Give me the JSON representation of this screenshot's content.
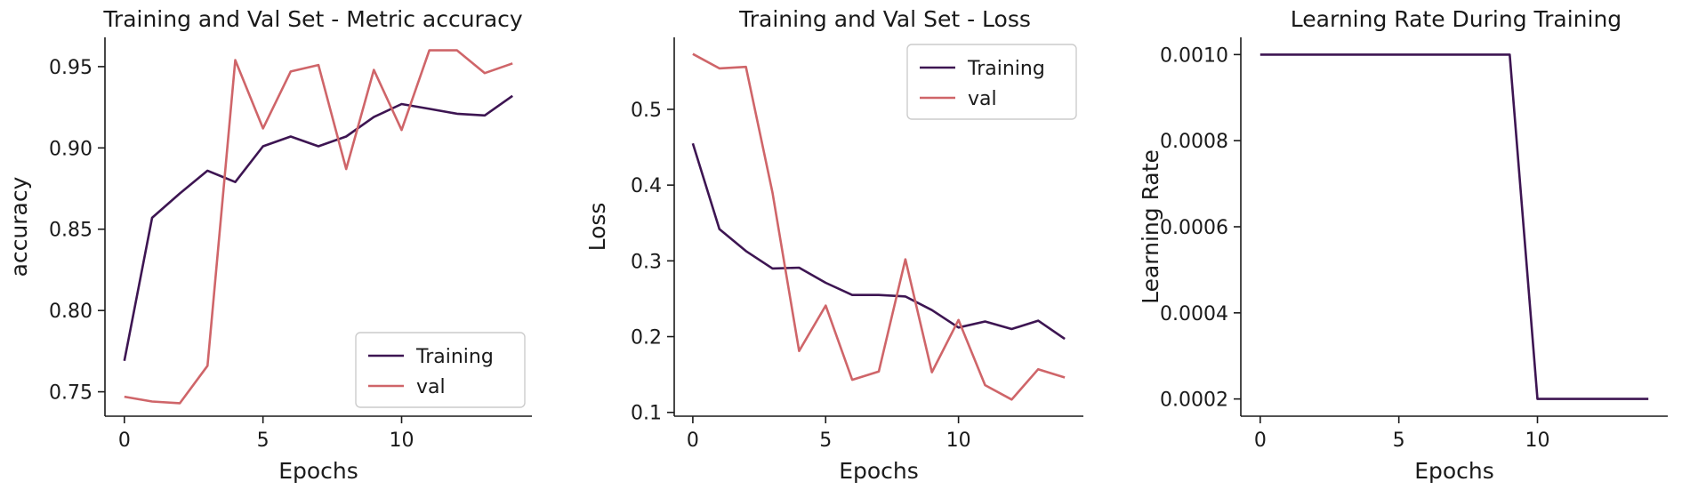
{
  "colors": {
    "training": "#3d1552",
    "val": "#cf6569",
    "legend_border": "#cccccc"
  },
  "chart_data": [
    {
      "type": "line",
      "title": "Training and Val Set - Metric accuracy",
      "xlabel": "Epochs",
      "ylabel": "accuracy",
      "xlim": [
        -0.7,
        14.7
      ],
      "ylim": [
        0.735,
        0.968
      ],
      "xticks": [
        0,
        5,
        10
      ],
      "xtick_labels": [
        "0",
        "5",
        "10"
      ],
      "yticks": [
        0.75,
        0.8,
        0.85,
        0.9,
        0.95
      ],
      "ytick_labels": [
        "0.75",
        "0.80",
        "0.85",
        "0.90",
        "0.95"
      ],
      "legend_position": "bottom-right",
      "x": [
        0,
        1,
        2,
        3,
        4,
        5,
        6,
        7,
        8,
        9,
        10,
        11,
        12,
        13,
        14
      ],
      "series": [
        {
          "name": "Training",
          "color_key": "training",
          "values": [
            0.769,
            0.857,
            0.872,
            0.886,
            0.879,
            0.901,
            0.907,
            0.901,
            0.907,
            0.919,
            0.927,
            0.924,
            0.921,
            0.92,
            0.932
          ]
        },
        {
          "name": "val",
          "color_key": "val",
          "values": [
            0.747,
            0.744,
            0.743,
            0.766,
            0.954,
            0.912,
            0.947,
            0.951,
            0.887,
            0.948,
            0.911,
            0.96,
            0.96,
            0.946,
            0.952
          ]
        }
      ]
    },
    {
      "type": "line",
      "title": "Training and Val Set - Loss",
      "xlabel": "Epochs",
      "ylabel": "Loss",
      "xlim": [
        -0.7,
        14.7
      ],
      "ylim": [
        0.095,
        0.595
      ],
      "xticks": [
        0,
        5,
        10
      ],
      "xtick_labels": [
        "0",
        "5",
        "10"
      ],
      "yticks": [
        0.1,
        0.2,
        0.3,
        0.4,
        0.5
      ],
      "ytick_labels": [
        "0.1",
        "0.2",
        "0.3",
        "0.4",
        "0.5"
      ],
      "legend_position": "top-right",
      "x": [
        0,
        1,
        2,
        3,
        4,
        5,
        6,
        7,
        8,
        9,
        10,
        11,
        12,
        13,
        14
      ],
      "series": [
        {
          "name": "Training",
          "color_key": "training",
          "values": [
            0.455,
            0.342,
            0.313,
            0.29,
            0.291,
            0.271,
            0.255,
            0.255,
            0.253,
            0.235,
            0.212,
            0.22,
            0.21,
            0.221,
            0.197
          ]
        },
        {
          "name": "val",
          "color_key": "val",
          "values": [
            0.573,
            0.554,
            0.556,
            0.39,
            0.181,
            0.241,
            0.143,
            0.154,
            0.302,
            0.153,
            0.222,
            0.136,
            0.117,
            0.157,
            0.146
          ]
        }
      ]
    },
    {
      "type": "line",
      "title": "Learning Rate During Training",
      "xlabel": "Epochs",
      "ylabel": "Learning Rate",
      "xlim": [
        -0.7,
        14.7
      ],
      "ylim": [
        0.00016,
        0.00104
      ],
      "xticks": [
        0,
        5,
        10
      ],
      "xtick_labels": [
        "0",
        "5",
        "10"
      ],
      "yticks": [
        0.0002,
        0.0004,
        0.0006,
        0.0008,
        0.001
      ],
      "ytick_labels": [
        "0.0002",
        "0.0004",
        "0.0006",
        "0.0008",
        "0.0010"
      ],
      "legend_position": "none",
      "x": [
        0,
        1,
        2,
        3,
        4,
        5,
        6,
        7,
        8,
        9,
        10,
        11,
        12,
        13,
        14
      ],
      "series": [
        {
          "name": "Learning Rate",
          "color_key": "training",
          "values": [
            0.001,
            0.001,
            0.001,
            0.001,
            0.001,
            0.001,
            0.001,
            0.001,
            0.001,
            0.001,
            0.0002,
            0.0002,
            0.0002,
            0.0002,
            0.0002
          ]
        }
      ]
    }
  ]
}
